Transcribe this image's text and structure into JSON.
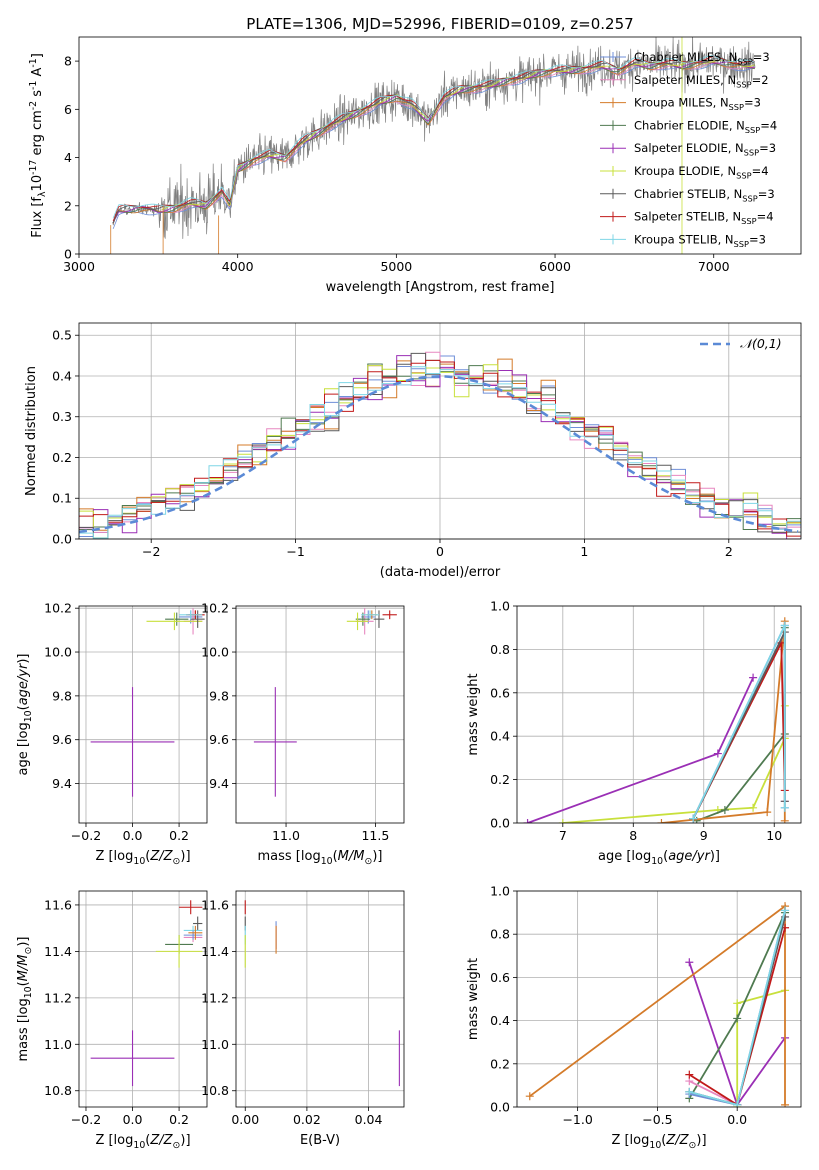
{
  "figure": {
    "title": "PLATE=1306, MJD=52996, FIBERID=0109, z=0.257"
  },
  "colors": {
    "chabrier_miles": "#6f8fd8",
    "salpeter_miles": "#e787c0",
    "kroupa_miles": "#d47b2a",
    "chabrier_elodie": "#4f7a50",
    "salpeter_elodie": "#9a2fb5",
    "kroupa_elodie": "#c8e03c",
    "chabrier_stelib": "#5a5a5a",
    "salpeter_stelib": "#c11a1a",
    "kroupa_stelib": "#7fd6e6",
    "normal_curve": "#5b8ad6",
    "data_spectrum": "#7f7f7f",
    "grid": "#b0b0b0"
  },
  "chart_data": [
    {
      "id": "spectrum",
      "type": "line",
      "xlabel": "wavelength [Angstrom, rest frame]",
      "ylabel": "Flux [f$_\\lambda$10$^{-17}$ erg cm$^{-2}$ s$^{-1}$ A$^{-1}$]",
      "xlim": [
        3000,
        7550
      ],
      "ylim": [
        0,
        9
      ],
      "xticks": [
        3000,
        4000,
        5000,
        6000,
        7000
      ],
      "yticks": [
        0,
        2,
        4,
        6,
        8
      ],
      "grid": false,
      "legend_position": "right",
      "legend": [
        {
          "label": "Chabrier MILES, N$_{SSP}$=3",
          "color_key": "chabrier_miles"
        },
        {
          "label": "Salpeter MILES, N$_{SSP}$=2",
          "color_key": "salpeter_miles"
        },
        {
          "label": "Kroupa MILES, N$_{SSP}$=3",
          "color_key": "kroupa_miles"
        },
        {
          "label": "Chabrier ELODIE, N$_{SSP}$=4",
          "color_key": "chabrier_elodie"
        },
        {
          "label": "Salpeter ELODIE, N$_{SSP}$=3",
          "color_key": "salpeter_elodie"
        },
        {
          "label": "Kroupa ELODIE, N$_{SSP}$=4",
          "color_key": "kroupa_elodie"
        },
        {
          "label": "Chabrier STELIB, N$_{SSP}$=3",
          "color_key": "chabrier_stelib"
        },
        {
          "label": "Salpeter STELIB, N$_{SSP}$=4",
          "color_key": "salpeter_stelib"
        },
        {
          "label": "Kroupa STELIB, N$_{SSP}$=3",
          "color_key": "kroupa_stelib"
        }
      ],
      "continuum": [
        [
          3210,
          1.2
        ],
        [
          3250,
          1.8
        ],
        [
          3400,
          1.9
        ],
        [
          3500,
          1.8
        ],
        [
          3600,
          1.9
        ],
        [
          3700,
          2.1
        ],
        [
          3800,
          2.0
        ],
        [
          3900,
          2.6
        ],
        [
          3950,
          2.0
        ],
        [
          4000,
          3.5
        ],
        [
          4100,
          3.9
        ],
        [
          4200,
          4.1
        ],
        [
          4300,
          4.0
        ],
        [
          4400,
          4.6
        ],
        [
          4500,
          5.0
        ],
        [
          4600,
          5.4
        ],
        [
          4700,
          5.7
        ],
        [
          4800,
          6.0
        ],
        [
          4900,
          6.3
        ],
        [
          5000,
          6.5
        ],
        [
          5100,
          6.2
        ],
        [
          5200,
          5.5
        ],
        [
          5300,
          6.5
        ],
        [
          5400,
          6.8
        ],
        [
          5500,
          6.9
        ],
        [
          5600,
          7.0
        ],
        [
          5700,
          7.2
        ],
        [
          5800,
          7.3
        ],
        [
          5900,
          7.5
        ],
        [
          6000,
          7.6
        ],
        [
          6100,
          7.6
        ],
        [
          6200,
          7.7
        ],
        [
          6300,
          7.8
        ],
        [
          6400,
          7.6
        ],
        [
          6500,
          7.9
        ],
        [
          6600,
          7.8
        ],
        [
          6700,
          7.9
        ],
        [
          6800,
          7.8
        ],
        [
          6900,
          7.9
        ],
        [
          7000,
          8.0
        ],
        [
          7100,
          7.9
        ],
        [
          7200,
          7.8
        ],
        [
          7260,
          7.8
        ]
      ]
    },
    {
      "id": "residuals",
      "type": "histogram",
      "xlabel": "(data-model)/error",
      "ylabel": "Normed distribution",
      "xlim": [
        -2.5,
        2.5
      ],
      "ylim": [
        0,
        0.53
      ],
      "xticks": [
        -2,
        -1,
        0,
        1,
        2
      ],
      "yticks": [
        0.0,
        0.1,
        0.2,
        0.3,
        0.4,
        0.5
      ],
      "grid": true,
      "legend_position": "top-right",
      "legend": [
        {
          "label": "$\\mathcal{N}(0,1)$",
          "color_key": "normal_curve"
        }
      ],
      "bin_width": 0.1
    },
    {
      "id": "age_vs_Z",
      "type": "scatter",
      "xlabel": "Z [log$_{10}$($Z/Z_\\odot$)]",
      "ylabel": "age  [log$_{10}$($age/yr$)]",
      "xlim": [
        -0.23,
        0.32
      ],
      "ylim": [
        9.22,
        10.21
      ],
      "xticks": [
        -0.2,
        0.0,
        0.2
      ],
      "yticks": [
        9.4,
        9.6,
        9.8,
        10.0,
        10.2
      ],
      "grid": true,
      "points": [
        {
          "model": "salpeter_elodie",
          "x": 0.0,
          "y": 9.59,
          "xerr": 0.18,
          "yerr": 0.25
        },
        {
          "model": "chabrier_miles",
          "x": 0.25,
          "y": 10.16,
          "xerr": 0.05,
          "yerr": 0.03
        },
        {
          "model": "salpeter_miles",
          "x": 0.26,
          "y": 10.14,
          "xerr": 0.04,
          "yerr": 0.06
        },
        {
          "model": "kroupa_miles",
          "x": 0.27,
          "y": 10.17,
          "xerr": 0.03,
          "yerr": 0.02
        },
        {
          "model": "chabrier_elodie",
          "x": 0.19,
          "y": 10.15,
          "xerr": 0.05,
          "yerr": 0.03
        },
        {
          "model": "kroupa_elodie",
          "x": 0.18,
          "y": 10.14,
          "xerr": 0.12,
          "yerr": 0.04
        },
        {
          "model": "chabrier_stelib",
          "x": 0.28,
          "y": 10.15,
          "xerr": 0.03,
          "yerr": 0.04
        },
        {
          "model": "salpeter_stelib",
          "x": 0.27,
          "y": 10.17,
          "xerr": 0.04,
          "yerr": 0.02
        },
        {
          "model": "kroupa_stelib",
          "x": 0.25,
          "y": 10.17,
          "xerr": 0.05,
          "yerr": 0.02
        }
      ]
    },
    {
      "id": "age_vs_mass",
      "type": "scatter",
      "xlabel": "mass [log$_{10}$($M/M_\\odot$)]",
      "ylabel": "",
      "xlim": [
        10.72,
        11.66
      ],
      "ylim": [
        9.22,
        10.21
      ],
      "xticks": [
        11.0,
        11.5
      ],
      "yticks": [
        9.4,
        9.6,
        9.8,
        10.0,
        10.2
      ],
      "grid": true,
      "points": [
        {
          "model": "salpeter_elodie",
          "x": 10.94,
          "y": 9.59,
          "xerr": 0.12,
          "yerr": 0.25
        },
        {
          "model": "chabrier_miles",
          "x": 11.46,
          "y": 10.16,
          "xerr": 0.04,
          "yerr": 0.03
        },
        {
          "model": "salpeter_miles",
          "x": 11.44,
          "y": 10.14,
          "xerr": 0.05,
          "yerr": 0.06
        },
        {
          "model": "kroupa_miles",
          "x": 11.48,
          "y": 10.17,
          "xerr": 0.03,
          "yerr": 0.02
        },
        {
          "model": "chabrier_elodie",
          "x": 11.43,
          "y": 10.15,
          "xerr": 0.04,
          "yerr": 0.03
        },
        {
          "model": "kroupa_elodie",
          "x": 11.4,
          "y": 10.14,
          "xerr": 0.06,
          "yerr": 0.04
        },
        {
          "model": "chabrier_stelib",
          "x": 11.52,
          "y": 10.15,
          "xerr": 0.03,
          "yerr": 0.04
        },
        {
          "model": "salpeter_stelib",
          "x": 11.58,
          "y": 10.17,
          "xerr": 0.04,
          "yerr": 0.02
        },
        {
          "model": "kroupa_stelib",
          "x": 11.47,
          "y": 10.17,
          "xerr": 0.05,
          "yerr": 0.02
        }
      ]
    },
    {
      "id": "massweight_vs_age",
      "type": "line",
      "xlabel": "age  [log$_{10}$($age/yr$)]",
      "ylabel": "mass weight",
      "xlim": [
        6.35,
        10.38
      ],
      "ylim": [
        0,
        1
      ],
      "xticks": [
        7,
        8,
        9,
        10
      ],
      "yticks": [
        0.0,
        0.2,
        0.4,
        0.6,
        0.8,
        1.0
      ],
      "grid": true,
      "series": [
        {
          "model": "salpeter_elodie",
          "x": [
            6.5,
            9.2,
            9.7
          ],
          "y": [
            0.0,
            0.32,
            0.67
          ]
        },
        {
          "model": "kroupa_elodie",
          "x": [
            7.0,
            9.2,
            9.7,
            10.15,
            10.15
          ],
          "y": [
            0.0,
            0.06,
            0.07,
            0.39,
            0.54
          ]
        },
        {
          "model": "chabrier_elodie",
          "x": [
            8.9,
            9.3,
            10.15,
            10.15
          ],
          "y": [
            0.01,
            0.06,
            0.41,
            0.9
          ]
        },
        {
          "model": "kroupa_miles",
          "x": [
            8.4,
            9.9,
            10.15,
            10.15
          ],
          "y": [
            0.0,
            0.05,
            0.93,
            0.01
          ]
        },
        {
          "model": "salpeter_miles",
          "x": [
            8.85,
            10.15,
            10.15
          ],
          "y": [
            0.02,
            0.88,
            0.1
          ]
        },
        {
          "model": "chabrier_miles",
          "x": [
            8.85,
            10.15,
            10.15
          ],
          "y": [
            0.02,
            0.91,
            0.07
          ]
        },
        {
          "model": "salpeter_stelib",
          "x": [
            8.85,
            10.1,
            10.15
          ],
          "y": [
            0.02,
            0.83,
            0.15
          ]
        },
        {
          "model": "chabrier_stelib",
          "x": [
            8.85,
            10.15,
            10.15
          ],
          "y": [
            0.02,
            0.88,
            0.1
          ]
        },
        {
          "model": "kroupa_stelib",
          "x": [
            8.85,
            10.15,
            10.15
          ],
          "y": [
            0.02,
            0.91,
            0.07
          ]
        }
      ]
    },
    {
      "id": "mass_vs_Z",
      "type": "scatter",
      "xlabel": "Z [log$_{10}$($Z/Z_\\odot$)]",
      "ylabel": "mass [log$_{10}$($M/M_\\odot$)]",
      "xlim": [
        -0.23,
        0.32
      ],
      "ylim": [
        10.73,
        11.66
      ],
      "xticks": [
        -0.2,
        0.0,
        0.2
      ],
      "yticks": [
        10.8,
        11.0,
        11.2,
        11.4,
        11.6
      ],
      "grid": true,
      "points": [
        {
          "model": "salpeter_elodie",
          "x": 0.0,
          "y": 10.94,
          "xerr": 0.18,
          "yerr": 0.12
        },
        {
          "model": "salpeter_stelib",
          "x": 0.25,
          "y": 11.59,
          "xerr": 0.05,
          "yerr": 0.03
        },
        {
          "model": "chabrier_stelib",
          "x": 0.28,
          "y": 11.52,
          "xerr": 0.02,
          "yerr": 0.03
        },
        {
          "model": "kroupa_stelib",
          "x": 0.26,
          "y": 11.49,
          "xerr": 0.04,
          "yerr": 0.02
        },
        {
          "model": "salpeter_miles",
          "x": 0.26,
          "y": 11.46,
          "xerr": 0.04,
          "yerr": 0.02
        },
        {
          "model": "chabrier_miles",
          "x": 0.26,
          "y": 11.47,
          "xerr": 0.04,
          "yerr": 0.02
        },
        {
          "model": "kroupa_miles",
          "x": 0.27,
          "y": 11.48,
          "xerr": 0.03,
          "yerr": 0.03
        },
        {
          "model": "chabrier_elodie",
          "x": 0.2,
          "y": 11.43,
          "xerr": 0.06,
          "yerr": 0.04
        },
        {
          "model": "kroupa_elodie",
          "x": 0.2,
          "y": 11.4,
          "xerr": 0.1,
          "yerr": 0.07
        }
      ]
    },
    {
      "id": "mass_vs_ebv",
      "type": "scatter",
      "xlabel": "E(B-V)",
      "ylabel": "",
      "xlim": [
        -0.003,
        0.0515
      ],
      "ylim": [
        10.73,
        11.66
      ],
      "xticks": [
        0.0,
        0.02,
        0.04
      ],
      "yticks": [
        10.8,
        11.0,
        11.2,
        11.4,
        11.6
      ],
      "grid": true,
      "points": [
        {
          "model": "salpeter_elodie",
          "x": 0.05,
          "y": 10.94,
          "xerr": 0.0,
          "yerr": 0.12
        },
        {
          "model": "salpeter_stelib",
          "x": 0.0,
          "y": 11.59,
          "xerr": 0.0,
          "yerr": 0.03
        },
        {
          "model": "chabrier_stelib",
          "x": 0.0,
          "y": 11.52,
          "xerr": 0.0,
          "yerr": 0.03
        },
        {
          "model": "kroupa_stelib",
          "x": 0.0,
          "y": 11.47,
          "xerr": 0.0,
          "yerr": 0.04
        },
        {
          "model": "kroupa_elodie",
          "x": 0.0,
          "y": 11.4,
          "xerr": 0.0,
          "yerr": 0.07
        },
        {
          "model": "chabrier_miles",
          "x": 0.01,
          "y": 11.47,
          "xerr": 0.0,
          "yerr": 0.06
        },
        {
          "model": "salpeter_miles",
          "x": 0.01,
          "y": 11.46,
          "xerr": 0.0,
          "yerr": 0.05
        },
        {
          "model": "kroupa_miles",
          "x": 0.01,
          "y": 11.45,
          "xerr": 0.0,
          "yerr": 0.06
        }
      ]
    },
    {
      "id": "massweight_vs_Z",
      "type": "line",
      "xlabel": "Z [log$_{10}$($Z/Z_\\odot$)]",
      "ylabel": "mass weight",
      "xlim": [
        -1.38,
        0.4
      ],
      "ylim": [
        0,
        1
      ],
      "xticks": [
        -1.0,
        -0.5,
        0.0
      ],
      "yticks": [
        0.0,
        0.2,
        0.4,
        0.6,
        0.8,
        1.0
      ],
      "grid": true,
      "series": [
        {
          "model": "salpeter_elodie",
          "x": [
            -0.3,
            0.0,
            0.3
          ],
          "y": [
            0.67,
            0.01,
            0.32
          ]
        },
        {
          "model": "kroupa_elodie",
          "x": [
            0.0,
            0.0,
            0.3
          ],
          "y": [
            0.0,
            0.48,
            0.54
          ]
        },
        {
          "model": "chabrier_elodie",
          "x": [
            -0.3,
            0.0,
            0.3
          ],
          "y": [
            0.04,
            0.41,
            0.9
          ]
        },
        {
          "model": "kroupa_miles",
          "x": [
            -1.3,
            0.3,
            0.3
          ],
          "y": [
            0.05,
            0.93,
            0.01
          ]
        },
        {
          "model": "salpeter_miles",
          "x": [
            -0.3,
            0.0,
            0.3
          ],
          "y": [
            0.12,
            0.01,
            0.88
          ]
        },
        {
          "model": "chabrier_miles",
          "x": [
            -0.3,
            0.0,
            0.3
          ],
          "y": [
            0.06,
            0.01,
            0.91
          ]
        },
        {
          "model": "salpeter_stelib",
          "x": [
            -0.3,
            0.0,
            0.3
          ],
          "y": [
            0.15,
            0.01,
            0.83
          ]
        },
        {
          "model": "chabrier_stelib",
          "x": [
            -0.3,
            0.0,
            0.3
          ],
          "y": [
            0.07,
            0.01,
            0.88
          ]
        },
        {
          "model": "kroupa_stelib",
          "x": [
            -0.3,
            0.0,
            0.3
          ],
          "y": [
            0.07,
            0.01,
            0.91
          ]
        }
      ]
    }
  ]
}
